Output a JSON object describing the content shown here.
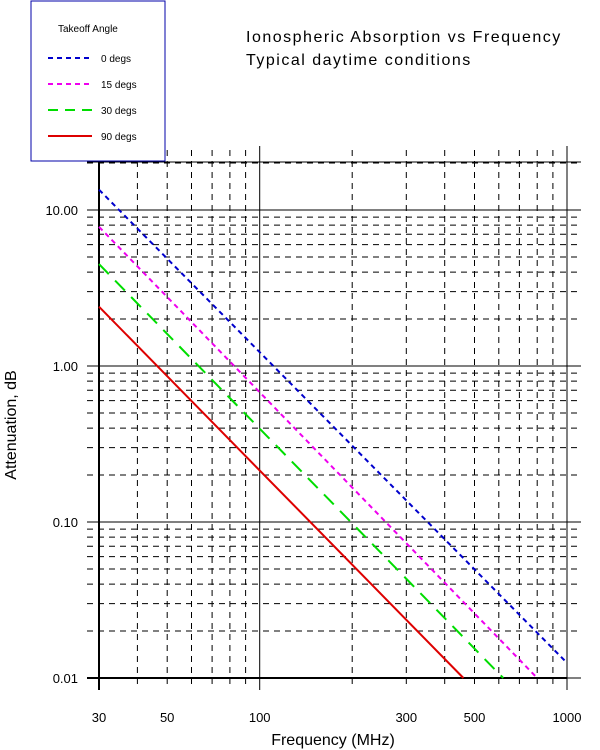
{
  "chart_data": {
    "type": "line",
    "title": "Ionospheric Absorption vs Frequency",
    "subtitle": "Typical daytime conditions",
    "xlabel": "Frequency (MHz)",
    "ylabel": "Attenuation, dB",
    "x_scale": "log",
    "y_scale": "log",
    "xlim": [
      30,
      1000
    ],
    "ylim": [
      0.01,
      20
    ],
    "x_tick_labels": [
      "30",
      "50",
      "100",
      "300",
      "500",
      "1000"
    ],
    "y_tick_labels": [
      "0.01",
      "0.10",
      "1.00",
      "10.00"
    ],
    "grid": true,
    "legend": {
      "title": "Takeoff Angle",
      "placement": "top-left"
    },
    "series": [
      {
        "name": "0 degs",
        "color": "#0000cc",
        "dash": "short-dash",
        "points": [
          [
            30,
            13.5
          ],
          [
            1000,
            0.0125
          ]
        ]
      },
      {
        "name": "15 degs",
        "color": "#ee00ee",
        "dash": "short-dash",
        "points": [
          [
            30,
            7.8
          ],
          [
            800,
            0.01
          ]
        ]
      },
      {
        "name": "30 degs",
        "color": "#00dd00",
        "dash": "long-dash",
        "points": [
          [
            30,
            4.5
          ],
          [
            620,
            0.01
          ]
        ]
      },
      {
        "name": "90 degs",
        "color": "#dd0000",
        "dash": "solid",
        "points": [
          [
            30,
            2.4
          ],
          [
            460,
            0.01
          ]
        ]
      }
    ]
  }
}
